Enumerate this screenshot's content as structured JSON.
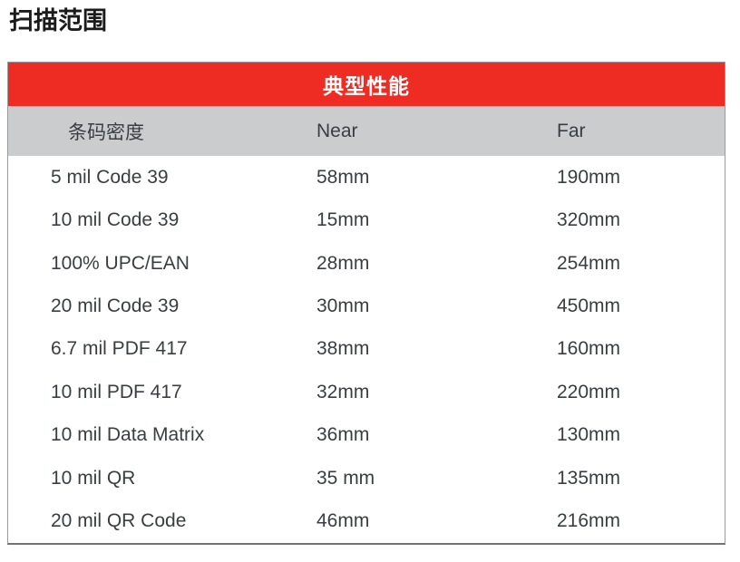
{
  "page": {
    "title": "扫描范围"
  },
  "table": {
    "title": "典型性能",
    "columns": [
      {
        "key": "density",
        "label": "条码密度"
      },
      {
        "key": "near",
        "label": "Near"
      },
      {
        "key": "far",
        "label": "Far"
      }
    ],
    "rows": [
      {
        "density": "5 mil Code 39",
        "near": "58mm",
        "far": "190mm"
      },
      {
        "density": "10 mil Code 39",
        "near": "15mm",
        "far": "320mm"
      },
      {
        "density": "100% UPC/EAN",
        "near": "28mm",
        "far": "254mm"
      },
      {
        "density": "20 mil Code 39",
        "near": "30mm",
        "far": "450mm"
      },
      {
        "density": "6.7 mil PDF 417",
        "near": "38mm",
        "far": "160mm"
      },
      {
        "density": "10 mil PDF 417",
        "near": "32mm",
        "far": "220mm"
      },
      {
        "density": "10 mil Data Matrix",
        "near": "36mm",
        "far": "130mm"
      },
      {
        "density": "10 mil QR",
        "near": "35 mm",
        "far": "135mm"
      },
      {
        "density": "20 mil QR Code",
        "near": "46mm",
        "far": "216mm"
      }
    ]
  },
  "colors": {
    "header_bg": "#EE2C23",
    "header_text": "#FFFFFF",
    "subheader_bg": "#CACCCE",
    "body_text": "#3A3D41",
    "title_text": "#1B1B1B",
    "border": "#9A9B9E",
    "bottom_border": "#717275"
  }
}
